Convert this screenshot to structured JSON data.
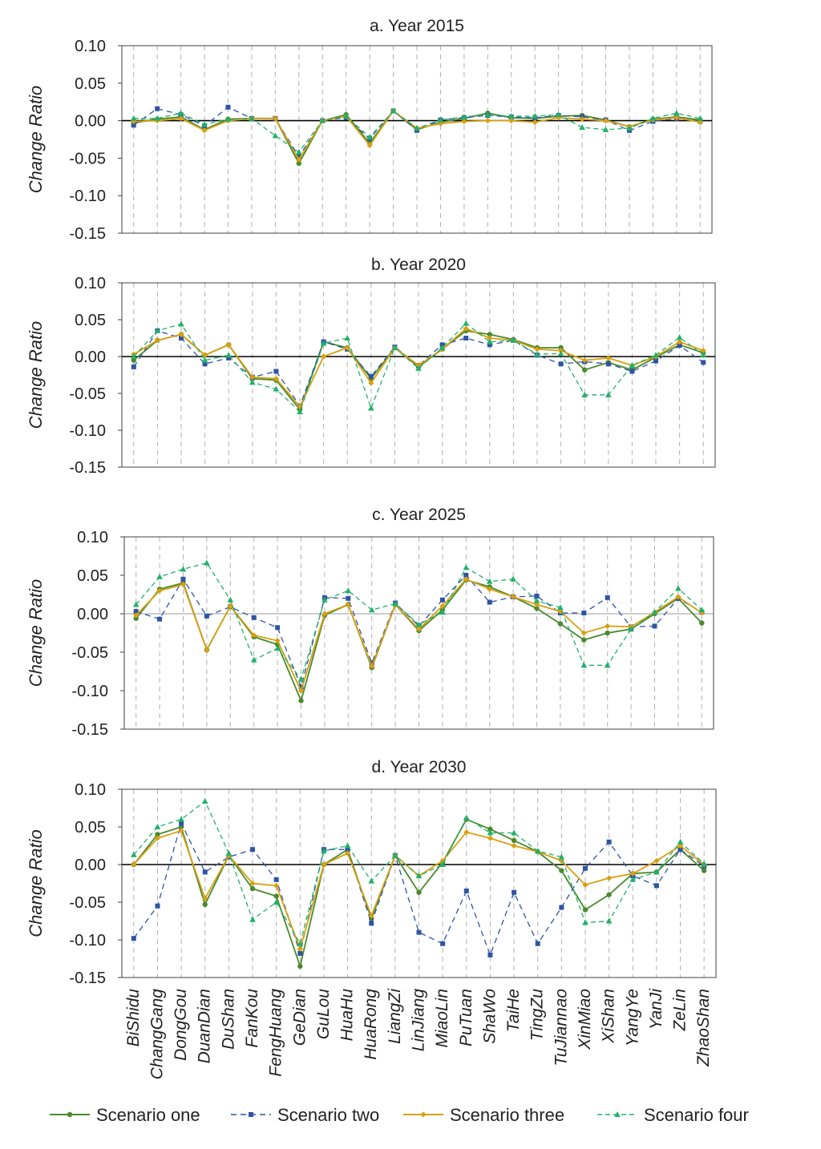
{
  "chart_data": [
    {
      "type": "line",
      "title": "a. Year 2015",
      "ylabel": "Change Ratio",
      "ylim": [
        -0.15,
        0.1
      ],
      "yticks": [
        "0.10",
        "0.05",
        "0.00",
        "-0.05",
        "-0.10",
        "-0.15"
      ],
      "series": [
        {
          "name": "Scenario one",
          "values": [
            -0.003,
            0.002,
            0.005,
            -0.012,
            0.002,
            0.003,
            0.003,
            -0.057,
            0.0,
            0.008,
            -0.03,
            0.013,
            -0.012,
            -0.002,
            0.003,
            0.01,
            0.004,
            0.003,
            0.006,
            0.007,
            0.001,
            -0.008,
            0.002,
            0.005,
            0.001
          ]
        },
        {
          "name": "Scenario two",
          "values": [
            -0.006,
            0.016,
            0.008,
            -0.007,
            0.018,
            0.003,
            0.003,
            -0.048,
            0.0,
            0.004,
            -0.024,
            0.013,
            -0.013,
            0.001,
            0.004,
            0.007,
            0.005,
            0.004,
            0.007,
            0.005,
            0.001,
            -0.013,
            -0.001,
            0.003,
            -0.001
          ]
        },
        {
          "name": "Scenario three",
          "values": [
            -0.001,
            0.0,
            0.003,
            -0.013,
            0.0,
            0.003,
            0.003,
            -0.052,
            0.0,
            0.006,
            -0.033,
            0.013,
            -0.01,
            -0.004,
            -0.001,
            0.0,
            0.0,
            -0.002,
            0.004,
            0.002,
            0.0,
            -0.008,
            0.001,
            0.004,
            -0.002
          ]
        },
        {
          "name": "Scenario four",
          "values": [
            0.003,
            0.003,
            0.01,
            -0.005,
            0.002,
            0.003,
            -0.02,
            -0.042,
            0.0,
            0.006,
            -0.022,
            0.013,
            -0.01,
            0.001,
            0.005,
            0.008,
            0.006,
            0.006,
            0.008,
            -0.009,
            -0.012,
            -0.01,
            0.003,
            0.01,
            0.003
          ]
        }
      ]
    },
    {
      "type": "line",
      "title": "b. Year 2020",
      "ylabel": "Change Ratio",
      "ylim": [
        -0.15,
        0.1
      ],
      "yticks": [
        "0.10",
        "0.05",
        "0.00",
        "-0.05",
        "-0.10",
        "-0.15"
      ],
      "series": [
        {
          "name": "Scenario one",
          "values": [
            -0.005,
            0.022,
            0.03,
            0.002,
            0.016,
            -0.03,
            -0.032,
            -0.072,
            0.02,
            0.012,
            -0.03,
            0.012,
            -0.014,
            0.01,
            0.035,
            0.03,
            0.023,
            0.012,
            0.012,
            -0.018,
            -0.008,
            -0.018,
            -0.001,
            0.016,
            0.005
          ]
        },
        {
          "name": "Scenario two",
          "values": [
            -0.014,
            0.035,
            0.025,
            -0.01,
            -0.002,
            -0.028,
            -0.02,
            -0.067,
            0.02,
            0.01,
            -0.027,
            0.013,
            -0.012,
            0.016,
            0.025,
            0.016,
            0.022,
            0.002,
            -0.01,
            -0.007,
            -0.01,
            -0.02,
            -0.006,
            0.015,
            -0.008
          ]
        },
        {
          "name": "Scenario three",
          "values": [
            0.003,
            0.022,
            0.03,
            0.002,
            0.016,
            -0.028,
            -0.03,
            -0.068,
            0.0,
            0.012,
            -0.036,
            0.012,
            -0.012,
            0.01,
            0.038,
            0.025,
            0.022,
            0.01,
            0.008,
            -0.005,
            -0.002,
            -0.012,
            0.0,
            0.02,
            0.008
          ]
        },
        {
          "name": "Scenario four",
          "values": [
            0.0,
            0.035,
            0.044,
            -0.005,
            0.002,
            -0.035,
            -0.044,
            -0.075,
            0.018,
            0.025,
            -0.07,
            0.012,
            -0.016,
            0.012,
            0.045,
            0.02,
            0.022,
            0.003,
            0.004,
            -0.052,
            -0.052,
            -0.012,
            0.002,
            0.026,
            0.002
          ]
        }
      ]
    },
    {
      "type": "line",
      "title": "c. Year 2025",
      "ylabel": "Change Ratio",
      "ylim": [
        -0.15,
        0.1
      ],
      "yticks": [
        "0.10",
        "0.05",
        "0.00",
        "-0.05",
        "-0.10",
        "-0.15"
      ],
      "series": [
        {
          "name": "Scenario one",
          "values": [
            -0.006,
            0.032,
            0.04,
            -0.047,
            0.01,
            -0.03,
            -0.04,
            -0.113,
            -0.002,
            0.012,
            -0.07,
            0.012,
            -0.022,
            0.005,
            0.044,
            0.035,
            0.022,
            0.007,
            -0.013,
            -0.034,
            -0.025,
            -0.02,
            0.0,
            0.02,
            -0.012
          ]
        },
        {
          "name": "Scenario two",
          "values": [
            0.003,
            -0.007,
            0.045,
            -0.003,
            0.009,
            -0.005,
            -0.018,
            -0.095,
            0.021,
            0.02,
            -0.064,
            0.014,
            -0.016,
            0.018,
            0.05,
            0.015,
            0.022,
            0.023,
            0.001,
            0.001,
            0.021,
            -0.017,
            -0.016,
            0.02,
            0.002
          ]
        },
        {
          "name": "Scenario three",
          "values": [
            -0.002,
            0.03,
            0.038,
            -0.047,
            0.01,
            -0.028,
            -0.035,
            -0.1,
            0.0,
            0.012,
            -0.068,
            0.012,
            -0.02,
            0.01,
            0.045,
            0.032,
            0.022,
            0.012,
            0.003,
            -0.025,
            -0.016,
            -0.017,
            0.002,
            0.022,
            0.001
          ]
        },
        {
          "name": "Scenario four",
          "values": [
            0.012,
            0.048,
            0.058,
            0.066,
            0.018,
            -0.06,
            -0.045,
            -0.085,
            0.018,
            0.03,
            0.005,
            0.013,
            -0.014,
            0.002,
            0.06,
            0.042,
            0.045,
            0.017,
            0.008,
            -0.067,
            -0.067,
            -0.02,
            0.002,
            0.033,
            0.005
          ]
        }
      ]
    },
    {
      "type": "line",
      "title": "d. Year 2030",
      "ylabel": "Change Ratio",
      "ylim": [
        -0.15,
        0.1
      ],
      "yticks": [
        "0.10",
        "0.05",
        "0.00",
        "-0.05",
        "-0.10",
        "-0.15"
      ],
      "series": [
        {
          "name": "Scenario one",
          "values": [
            0.0,
            0.04,
            0.05,
            -0.053,
            0.012,
            -0.032,
            -0.042,
            -0.135,
            0.0,
            0.02,
            -0.072,
            0.012,
            -0.037,
            0.003,
            0.06,
            0.047,
            0.032,
            0.017,
            -0.008,
            -0.06,
            -0.04,
            -0.012,
            -0.01,
            0.02,
            -0.008
          ]
        },
        {
          "name": "Scenario two",
          "values": [
            -0.098,
            -0.055,
            0.055,
            -0.01,
            0.01,
            0.02,
            -0.02,
            -0.118,
            0.02,
            0.02,
            -0.078,
            0.012,
            -0.09,
            -0.105,
            -0.035,
            -0.12,
            -0.037,
            -0.105,
            -0.057,
            -0.005,
            0.03,
            -0.015,
            -0.028,
            0.02,
            -0.002
          ]
        },
        {
          "name": "Scenario three",
          "values": [
            0.0,
            0.035,
            0.045,
            -0.045,
            0.012,
            -0.025,
            -0.028,
            -0.112,
            0.0,
            0.015,
            -0.068,
            0.012,
            -0.015,
            0.005,
            0.043,
            0.035,
            0.025,
            0.017,
            0.005,
            -0.027,
            -0.018,
            -0.012,
            0.005,
            0.025,
            0.0
          ]
        },
        {
          "name": "Scenario four",
          "values": [
            0.013,
            0.05,
            0.06,
            0.084,
            0.015,
            -0.073,
            -0.05,
            -0.105,
            0.018,
            0.025,
            -0.022,
            0.012,
            -0.015,
            0.0,
            0.062,
            0.042,
            0.042,
            0.018,
            0.01,
            -0.077,
            -0.075,
            -0.02,
            -0.01,
            0.03,
            0.001
          ]
        }
      ]
    }
  ],
  "categories": [
    "BiShidu",
    "ChangGang",
    "DongGou",
    "DuanDian",
    "DuShan",
    "FanKou",
    "FengHuang",
    "GeDian",
    "GuLou",
    "HuaHu",
    "HuaRong",
    "LiangZi",
    "LinJiang",
    "MiaoLin",
    "PuTuan",
    "ShaWo",
    "TaiHe",
    "TingZu",
    "TuJiannao",
    "XinMiao",
    "XiShan",
    "YangYe",
    "YanJi",
    "ZeLin",
    "ZhaoShan"
  ],
  "legend": {
    "position": "bottom",
    "items": [
      "Scenario one",
      "Scenario two",
      "Scenario three",
      "Scenario four"
    ]
  },
  "colors": {
    "Scenario one": "#4a8a2e",
    "Scenario two": "#2f54a3",
    "Scenario three": "#d8a012",
    "Scenario four": "#22b06a",
    "grid": "#b0b0b0",
    "axis": "#404040"
  }
}
